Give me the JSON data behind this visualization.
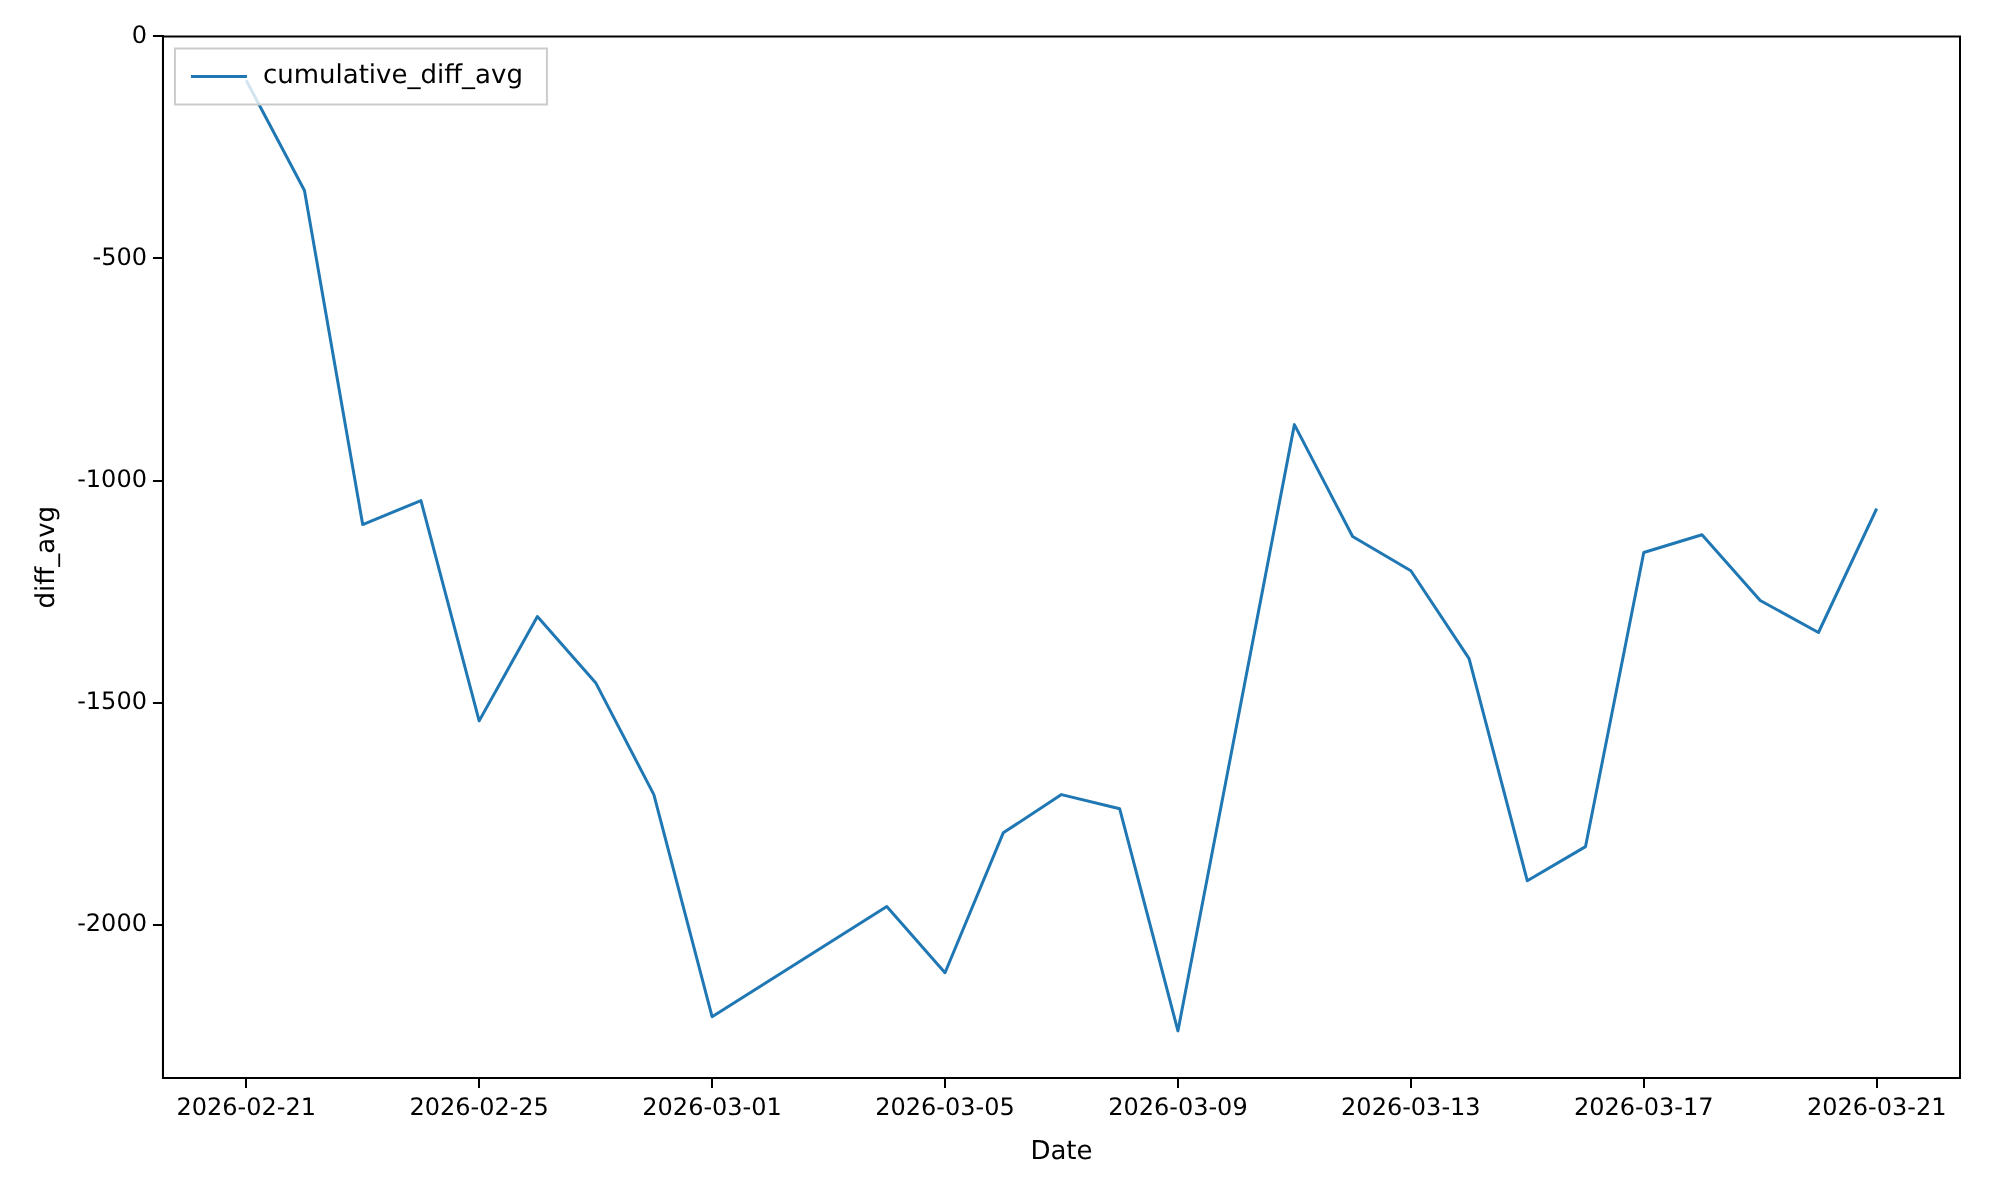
{
  "chart_data": {
    "type": "line",
    "xlabel": "Date",
    "ylabel": "diff_avg",
    "legend": "top left",
    "grid": false,
    "x": [
      "2026-02-21",
      "2026-02-22",
      "2026-02-23",
      "2026-02-24",
      "2026-02-25",
      "2026-02-26",
      "2026-02-27",
      "2026-02-28",
      "2026-03-01",
      "2026-03-04",
      "2026-03-05",
      "2026-03-06",
      "2026-03-07",
      "2026-03-08",
      "2026-03-09",
      "2026-03-11",
      "2026-03-12",
      "2026-03-13",
      "2026-03-14",
      "2026-03-15",
      "2026-03-16",
      "2026-03-17",
      "2026-03-18",
      "2026-03-19",
      "2026-03-20",
      "2026-03-21"
    ],
    "series": [
      {
        "name": "cumulative_diff_avg",
        "color": "#1f77b4",
        "values": [
          -99,
          -347,
          -1099,
          -1045,
          -1541,
          -1306,
          -1455,
          -1707,
          -2207,
          -1959,
          -2108,
          -1793,
          -1707,
          -1739,
          -2239,
          -874,
          -1126,
          -1203,
          -1401,
          -1901,
          -1824,
          -1162,
          -1122,
          -1270,
          -1342,
          -1063
        ]
      }
    ],
    "xlim": [
      "2026-02-19T13:40",
      "2026-03-22T10:20"
    ],
    "ylim": [
      -2345,
      0
    ],
    "xticks": [
      "2026-02-21",
      "2026-02-25",
      "2026-03-01",
      "2026-03-05",
      "2026-03-09",
      "2026-03-13",
      "2026-03-17",
      "2026-03-21"
    ],
    "yticks": [
      -2000,
      -1500,
      -1000,
      -500,
      0
    ]
  }
}
